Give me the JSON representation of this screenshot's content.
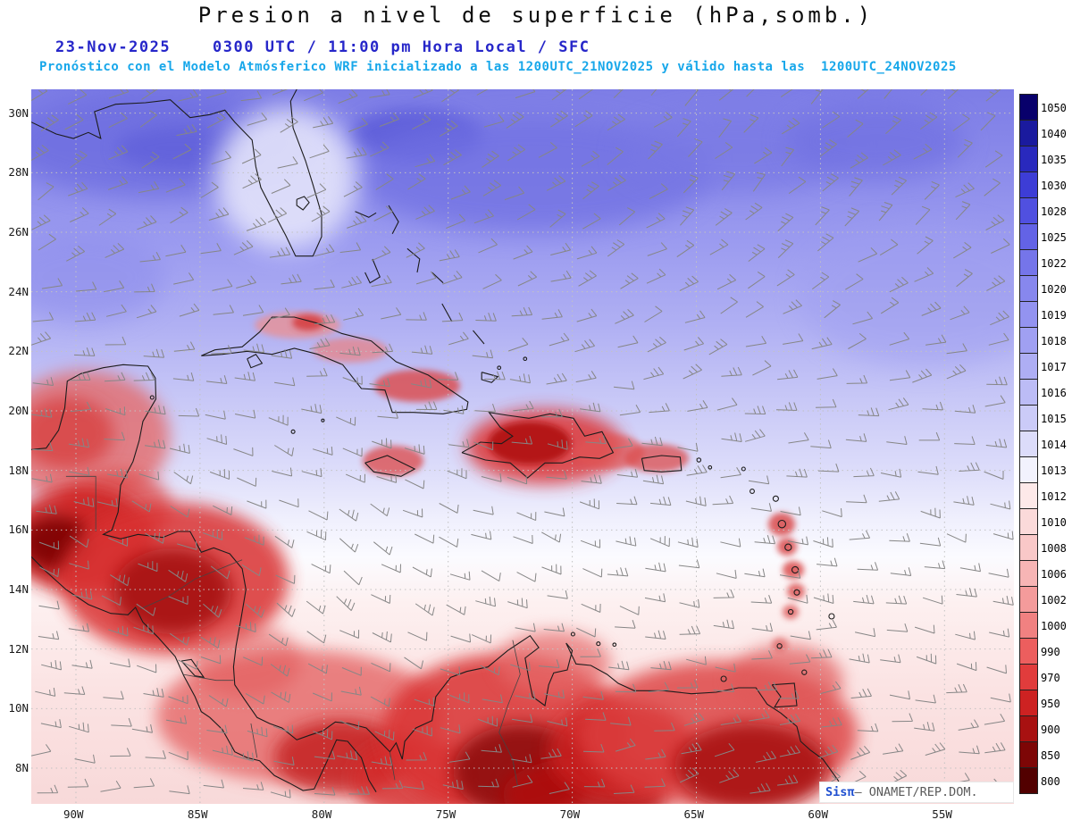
{
  "header": {
    "title": "Presion a nivel de superficie (hPa,somb.)",
    "datetime_line": "23-Nov-2025    0300 UTC / 11:00 pm Hora Local / SFC",
    "forecast_line": "Pronóstico con el Modelo Atmósferico WRF inicializado a las 1200UTC_21NOV2025 y válido hasta las  1200UTC_24NOV2025"
  },
  "map": {
    "lat_labels": [
      "30N",
      "28N",
      "26N",
      "24N",
      "22N",
      "20N",
      "18N",
      "16N",
      "14N",
      "12N",
      "10N",
      "8N"
    ],
    "lon_labels": [
      "90W",
      "85W",
      "80W",
      "75W",
      "70W",
      "65W",
      "60W",
      "55W"
    ]
  },
  "colorbar": {
    "unit": "hPa",
    "values": [
      "1050",
      "1040",
      "1035",
      "1030",
      "1028",
      "1025",
      "1022",
      "1020",
      "1019",
      "1018",
      "1017",
      "1016",
      "1015",
      "1014",
      "1013",
      "1012",
      "1010",
      "1008",
      "1006",
      "1002",
      "1000",
      "990",
      "970",
      "950",
      "900",
      "850",
      "800"
    ],
    "colors": [
      "#08006b",
      "#1a1a9e",
      "#2929bd",
      "#3d3dd6",
      "#5050e0",
      "#6363e6",
      "#7575ea",
      "#8787ee",
      "#9393f0",
      "#a0a0f2",
      "#aeaef4",
      "#bcbcf6",
      "#cbcbf8",
      "#dcdcfa",
      "#f2f2fd",
      "#fde9e9",
      "#fbdada",
      "#f9c8c8",
      "#f7b5b5",
      "#f49b9b",
      "#f18181",
      "#ec5e5e",
      "#e13c3c",
      "#cd2222",
      "#a81111",
      "#7d0606",
      "#520000"
    ]
  },
  "watermark": {
    "brand": "Sisπ",
    "text": "– ONAMET/REP.DOM."
  },
  "chart_data": {
    "type": "heatmap",
    "title": "Presion a nivel de superficie (hPa,somb.)",
    "valid_time": "23-Nov-2025 0300 UTC / 11:00 pm Hora Local / SFC",
    "model": "WRF",
    "init": "1200UTC_21NOV2025",
    "valid_until": "1200UTC_24NOV2025",
    "x_ticks": [
      "90W",
      "85W",
      "80W",
      "75W",
      "70W",
      "65W",
      "60W",
      "55W"
    ],
    "y_ticks": [
      "30N",
      "28N",
      "26N",
      "24N",
      "22N",
      "20N",
      "18N",
      "16N",
      "14N",
      "12N",
      "10N",
      "8N"
    ],
    "colorbar_levels_hpa": [
      1050,
      1040,
      1035,
      1030,
      1028,
      1025,
      1022,
      1020,
      1019,
      1018,
      1017,
      1016,
      1015,
      1014,
      1013,
      1012,
      1010,
      1008,
      1006,
      1002,
      1000,
      990,
      970,
      950,
      900,
      850,
      800
    ],
    "legend_position": "right",
    "grid": true
  }
}
